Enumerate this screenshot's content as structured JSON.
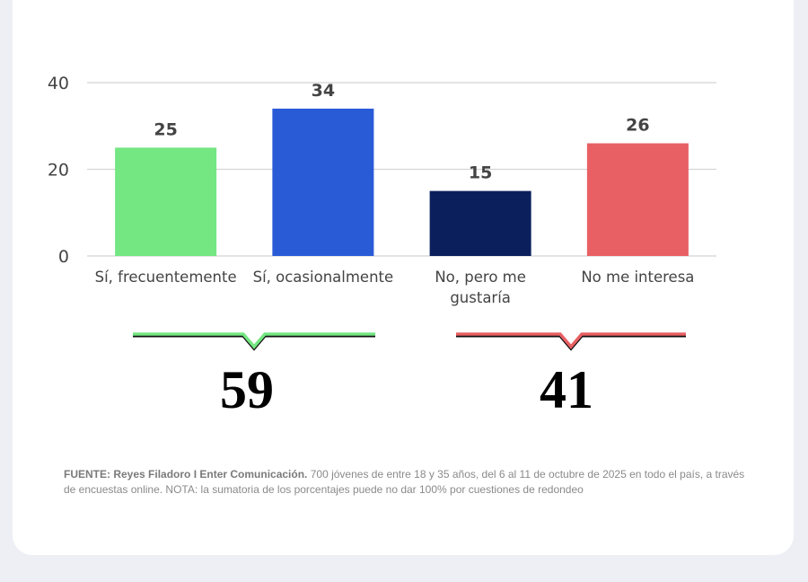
{
  "chart_data": {
    "type": "bar",
    "categories": [
      "Sí, frecuentemente",
      "Sí, ocasionalmente",
      "No, pero me gustaría",
      "No me interesa"
    ],
    "category_lines": [
      [
        "Sí, frecuentemente"
      ],
      [
        "Sí, ocasionalmente"
      ],
      [
        "No, pero me",
        "gustaría"
      ],
      [
        "No me interesa"
      ]
    ],
    "values": [
      25,
      34,
      15,
      26
    ],
    "colors": [
      "#74e682",
      "#2a5bd7",
      "#0b1f5c",
      "#e86063"
    ],
    "ylim": [
      0,
      40
    ],
    "yticks": [
      0,
      20,
      40
    ],
    "grid": true,
    "title": "",
    "xlabel": "",
    "ylabel": ""
  },
  "groups": [
    {
      "total": "59",
      "color": "#74e682",
      "spans": "Sí, frecuentemente + Sí, ocasionalmente"
    },
    {
      "total": "41",
      "color": "#e86063",
      "spans": "No, pero me gustaría + No me interesa"
    }
  ],
  "footnote": {
    "source": "FUENTE: Reyes Filadoro I Enter Comunicación.",
    "text": " 700 jóvenes de entre 18 y 35 años, del 6 al 11 de octubre de 2025 en todo el país, a través de encuestas online.  NOTA: la sumatoria de los porcentajes puede no dar 100% por cuestiones de redondeo"
  }
}
